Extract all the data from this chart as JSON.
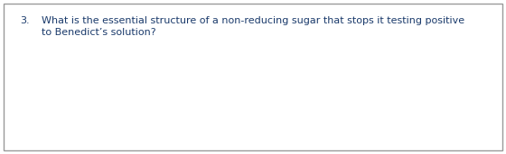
{
  "question_number": "3.",
  "text_line1": "What is the essential structure of a non-reducing sugar that stops it testing positive",
  "text_line2": "to Benedict’s solution?",
  "text_color": "#1a3a6b",
  "background_color": "#ffffff",
  "border_color": "#999999",
  "font_size": 8.0,
  "fig_width": 5.6,
  "fig_height": 1.71,
  "dpi": 100
}
